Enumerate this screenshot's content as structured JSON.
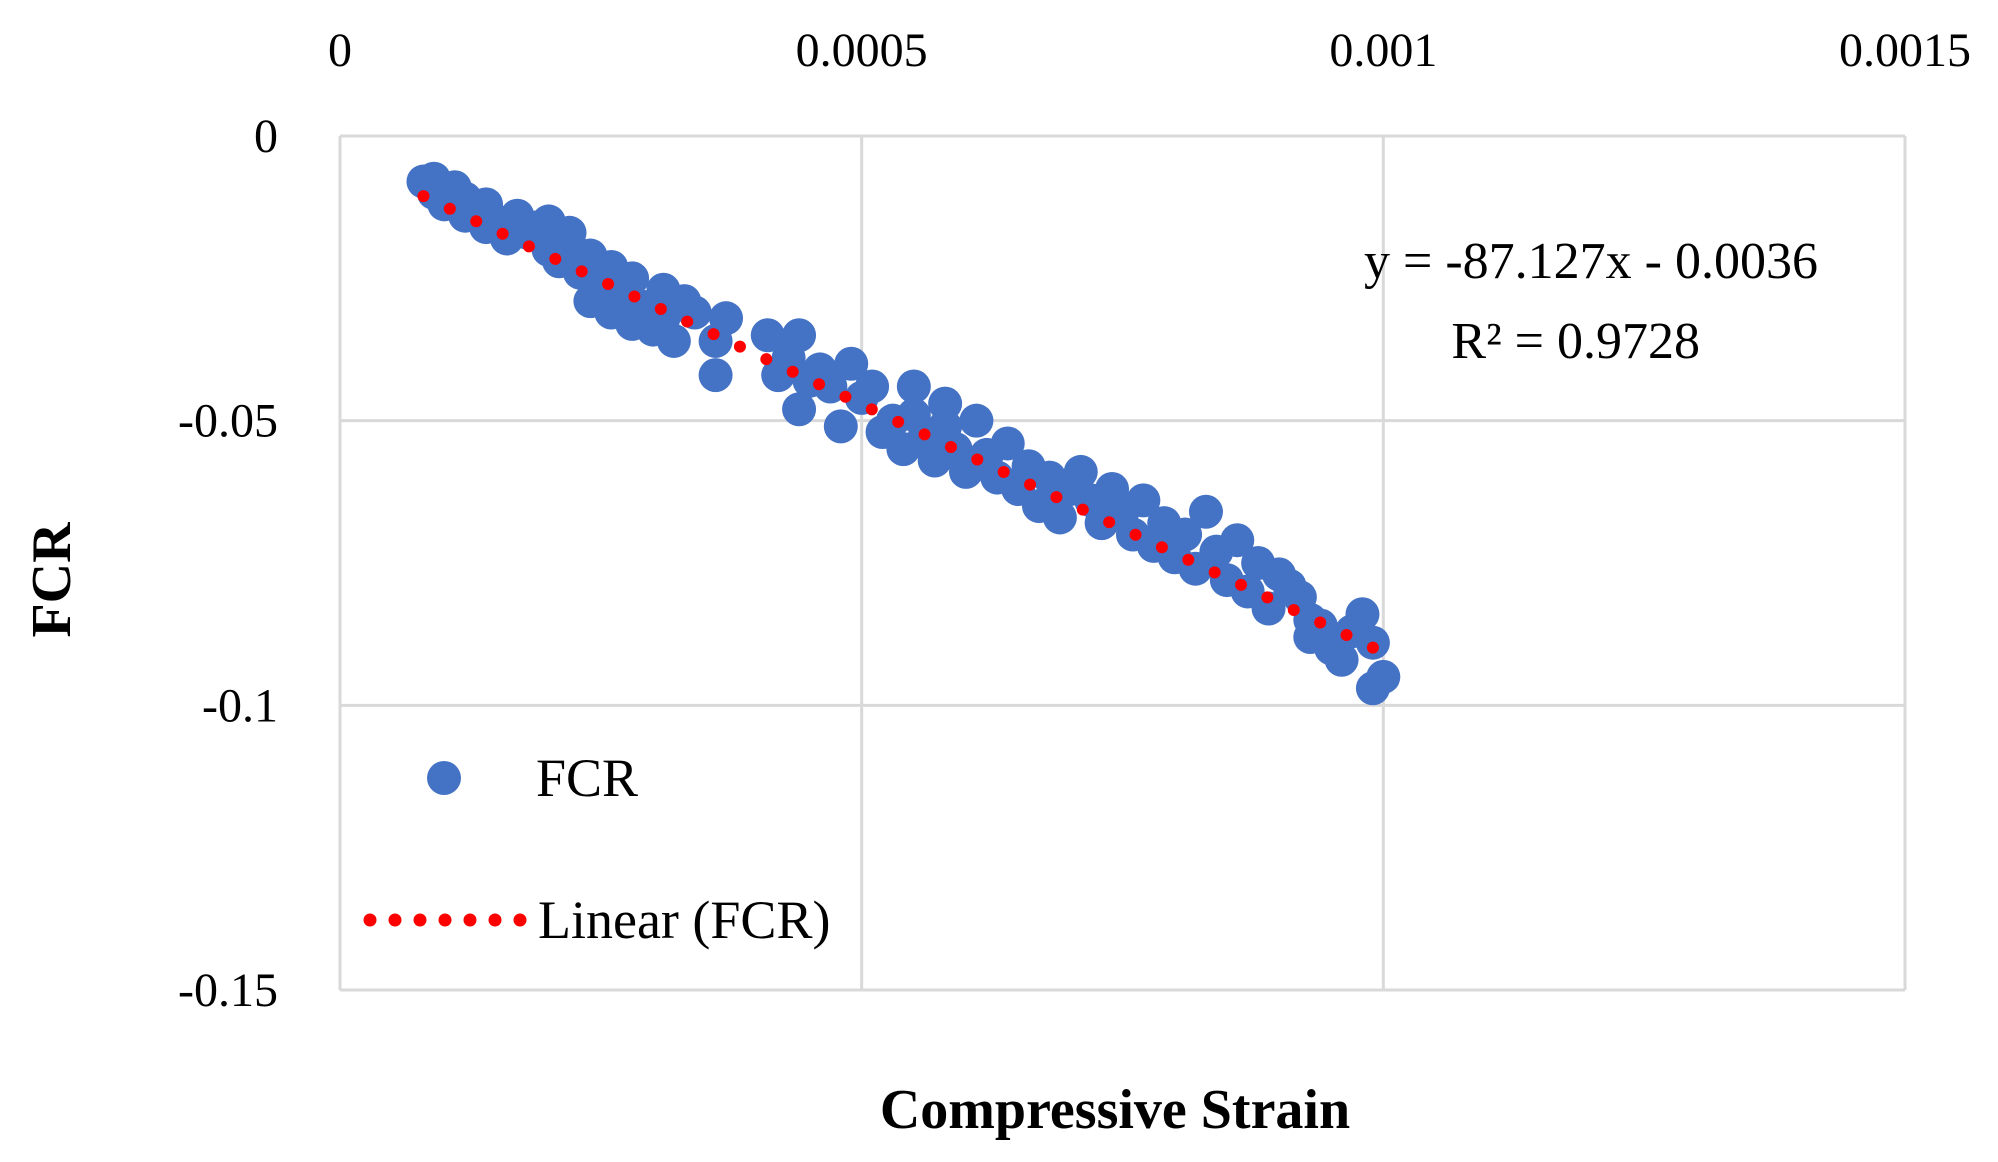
{
  "chart_data": {
    "type": "scatter",
    "title": "",
    "xlabel": "Compressive Strain",
    "ylabel": "FCR",
    "xlim": [
      0,
      0.0015
    ],
    "ylim": [
      -0.15,
      0
    ],
    "x_ticks": [
      {
        "value": 0,
        "label": "0"
      },
      {
        "value": 0.0005,
        "label": "0.0005"
      },
      {
        "value": 0.001,
        "label": "0.001"
      },
      {
        "value": 0.0015,
        "label": "0.0015"
      }
    ],
    "y_ticks": [
      {
        "value": 0,
        "label": "0"
      },
      {
        "value": -0.05,
        "label": "-0.05"
      },
      {
        "value": -0.1,
        "label": "-0.1"
      },
      {
        "value": -0.15,
        "label": "-0.15"
      }
    ],
    "x_axis_position": "top",
    "grid": true,
    "legend_position": "bottom-left",
    "series": [
      {
        "name": "FCR",
        "kind": "scatter",
        "color": "#4472C4",
        "points": [
          [
            8e-05,
            -0.008
          ],
          [
            9e-05,
            -0.01
          ],
          [
            9e-05,
            -0.0075
          ],
          [
            0.0001,
            -0.012
          ],
          [
            0.00011,
            -0.009
          ],
          [
            0.00012,
            -0.014
          ],
          [
            0.00012,
            -0.011
          ],
          [
            0.00013,
            -0.013
          ],
          [
            0.00014,
            -0.016
          ],
          [
            0.00014,
            -0.012
          ],
          [
            0.00015,
            -0.015
          ],
          [
            0.00016,
            -0.018
          ],
          [
            0.00017,
            -0.014
          ],
          [
            0.00018,
            -0.017
          ],
          [
            0.00019,
            -0.016
          ],
          [
            0.0002,
            -0.02
          ],
          [
            0.0002,
            -0.015
          ],
          [
            0.00021,
            -0.022
          ],
          [
            0.00022,
            -0.019
          ],
          [
            0.00023,
            -0.024
          ],
          [
            0.00022,
            -0.017
          ],
          [
            0.00024,
            -0.021
          ],
          [
            0.00025,
            -0.026
          ],
          [
            0.00024,
            -0.029
          ],
          [
            0.00026,
            -0.023
          ],
          [
            0.00026,
            -0.031
          ],
          [
            0.00027,
            -0.028
          ],
          [
            0.00028,
            -0.033
          ],
          [
            0.00028,
            -0.025
          ],
          [
            0.00029,
            -0.03
          ],
          [
            0.0003,
            -0.034
          ],
          [
            0.00031,
            -0.027
          ],
          [
            0.00031,
            -0.032
          ],
          [
            0.00032,
            -0.036
          ],
          [
            0.00033,
            -0.029
          ],
          [
            0.00034,
            -0.031
          ],
          [
            0.00036,
            -0.042
          ],
          [
            0.00036,
            -0.036
          ],
          [
            0.00037,
            -0.032
          ],
          [
            0.00041,
            -0.035
          ],
          [
            0.00042,
            -0.042
          ],
          [
            0.00043,
            -0.039
          ],
          [
            0.00044,
            -0.048
          ],
          [
            0.00044,
            -0.035
          ],
          [
            0.00045,
            -0.043
          ],
          [
            0.00046,
            -0.041
          ],
          [
            0.00047,
            -0.044
          ],
          [
            0.00048,
            -0.051
          ],
          [
            0.00049,
            -0.04
          ],
          [
            0.0005,
            -0.046
          ],
          [
            0.00051,
            -0.044
          ],
          [
            0.00052,
            -0.052
          ],
          [
            0.00053,
            -0.05
          ],
          [
            0.00054,
            -0.055
          ],
          [
            0.00055,
            -0.044
          ],
          [
            0.00055,
            -0.049
          ],
          [
            0.00056,
            -0.053
          ],
          [
            0.00057,
            -0.057
          ],
          [
            0.00058,
            -0.051
          ],
          [
            0.00058,
            -0.047
          ],
          [
            0.00059,
            -0.055
          ],
          [
            0.0006,
            -0.059
          ],
          [
            0.00061,
            -0.05
          ],
          [
            0.00062,
            -0.056
          ],
          [
            0.00063,
            -0.06
          ],
          [
            0.00064,
            -0.054
          ],
          [
            0.00065,
            -0.062
          ],
          [
            0.00066,
            -0.058
          ],
          [
            0.00067,
            -0.065
          ],
          [
            0.00068,
            -0.06
          ],
          [
            0.00069,
            -0.067
          ],
          [
            0.0007,
            -0.062
          ],
          [
            0.00071,
            -0.059
          ],
          [
            0.00072,
            -0.064
          ],
          [
            0.00073,
            -0.068
          ],
          [
            0.00074,
            -0.062
          ],
          [
            0.00075,
            -0.066
          ],
          [
            0.00076,
            -0.07
          ],
          [
            0.00077,
            -0.064
          ],
          [
            0.00078,
            -0.072
          ],
          [
            0.00079,
            -0.068
          ],
          [
            0.0008,
            -0.074
          ],
          [
            0.00081,
            -0.07
          ],
          [
            0.00082,
            -0.076
          ],
          [
            0.00083,
            -0.066
          ],
          [
            0.00084,
            -0.073
          ],
          [
            0.00085,
            -0.078
          ],
          [
            0.00086,
            -0.071
          ],
          [
            0.00087,
            -0.08
          ],
          [
            0.00088,
            -0.075
          ],
          [
            0.00089,
            -0.083
          ],
          [
            0.0009,
            -0.077
          ],
          [
            0.00091,
            -0.079
          ],
          [
            0.00092,
            -0.081
          ],
          [
            0.00093,
            -0.085
          ],
          [
            0.00093,
            -0.088
          ],
          [
            0.00094,
            -0.086
          ],
          [
            0.00095,
            -0.09
          ],
          [
            0.00096,
            -0.092
          ],
          [
            0.00097,
            -0.087
          ],
          [
            0.00098,
            -0.084
          ],
          [
            0.00099,
            -0.097
          ],
          [
            0.00099,
            -0.089
          ],
          [
            0.001,
            -0.095
          ]
        ]
      },
      {
        "name": "Linear (FCR)",
        "kind": "trendline",
        "color": "#FF0000",
        "slope": -87.127,
        "intercept": -0.0036,
        "x_range": [
          8e-05,
          0.00099
        ]
      }
    ],
    "annotations": {
      "equation": "y = -87.127x - 0.0036",
      "r_squared": "R² = 0.9728"
    }
  }
}
